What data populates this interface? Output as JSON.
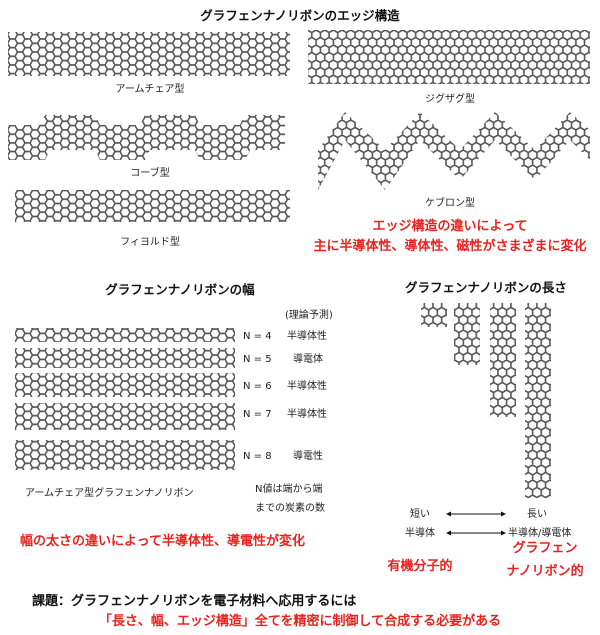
{
  "title": "グラフェンナノリボンのエッジ構造",
  "edges": {
    "armchair": "アームチェア型",
    "zigzag": "ジグザグ型",
    "cove": "コーブ型",
    "chevron": "ケブロン型",
    "fjord": "フィヨルド型",
    "note_line1": "エッジ構造の違いによって",
    "note_line2": "主に半導体性、導体性、磁性がさまざまに変化"
  },
  "width_section": {
    "title": "グラフェンナノリボンの幅",
    "prediction_header": "(理論予測)",
    "rows": [
      {
        "n": "N = 4",
        "property": "半導体性"
      },
      {
        "n": "N = 5",
        "property": "導電体"
      },
      {
        "n": "N = 6",
        "property": "半導体性"
      },
      {
        "n": "N = 7",
        "property": "半導体性"
      },
      {
        "n": "N = 8",
        "property": "導電性"
      }
    ],
    "caption": "アームチェア型グラフェンナノリボン",
    "n_note_line1": "N値は端から端",
    "n_note_line2": "までの炭素の数",
    "note": "幅の太さの違いによって半導体性、導電性が変化"
  },
  "length_section": {
    "title": "グラフェンナノリボンの長さ",
    "short": "短い",
    "long": "長い",
    "left_property": "半導体",
    "right_property": "半導体/導電体",
    "left_note": "有機分子的",
    "right_note_line1": "グラフェン",
    "right_note_line2": "ナノリボン的"
  },
  "task": {
    "line1": "課題：グラフェンナノリボンを電子材料へ応用するには",
    "line2": "「長さ、幅、エッジ構造」全てを精密に制御して合成する必要がある"
  },
  "colors": {
    "accent_red": "#e8231f",
    "lattice": "#555555"
  }
}
